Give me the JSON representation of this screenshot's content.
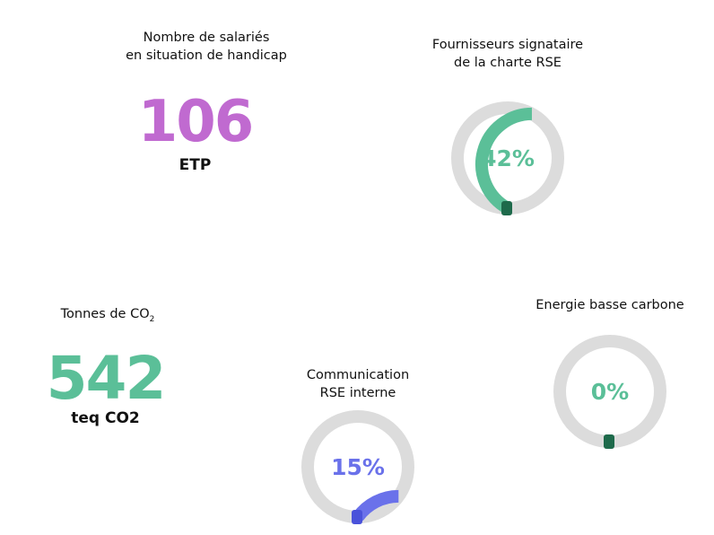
{
  "stats": [
    {
      "label_lines": [
        "Nombre de salariés",
        "en situation de handicap"
      ],
      "value": "106",
      "unit": "ETP",
      "color": "#c06ad0"
    },
    {
      "label": "Tonnes de CO",
      "label_sub": "2",
      "value": "542",
      "unit": "teq CO2",
      "color": "#5bbf98"
    }
  ],
  "gauges": [
    {
      "label_lines": [
        "Fournisseurs signataire",
        "de la charte RSE"
      ],
      "percent": 42,
      "text": "42%",
      "color": "#5bbf98",
      "cap_color": "#1e6a4b"
    },
    {
      "label_lines": [
        "Communication",
        "RSE interne"
      ],
      "percent": 15,
      "text": "15%",
      "color": "#6a71ea",
      "cap_color": "#4a52da"
    },
    {
      "label_lines": [
        "Energie basse carbone"
      ],
      "percent": 0,
      "text": "0%",
      "color": "#5bbf98",
      "cap_color": "#1e6a4b"
    }
  ],
  "track_color": "#dcdcdc"
}
